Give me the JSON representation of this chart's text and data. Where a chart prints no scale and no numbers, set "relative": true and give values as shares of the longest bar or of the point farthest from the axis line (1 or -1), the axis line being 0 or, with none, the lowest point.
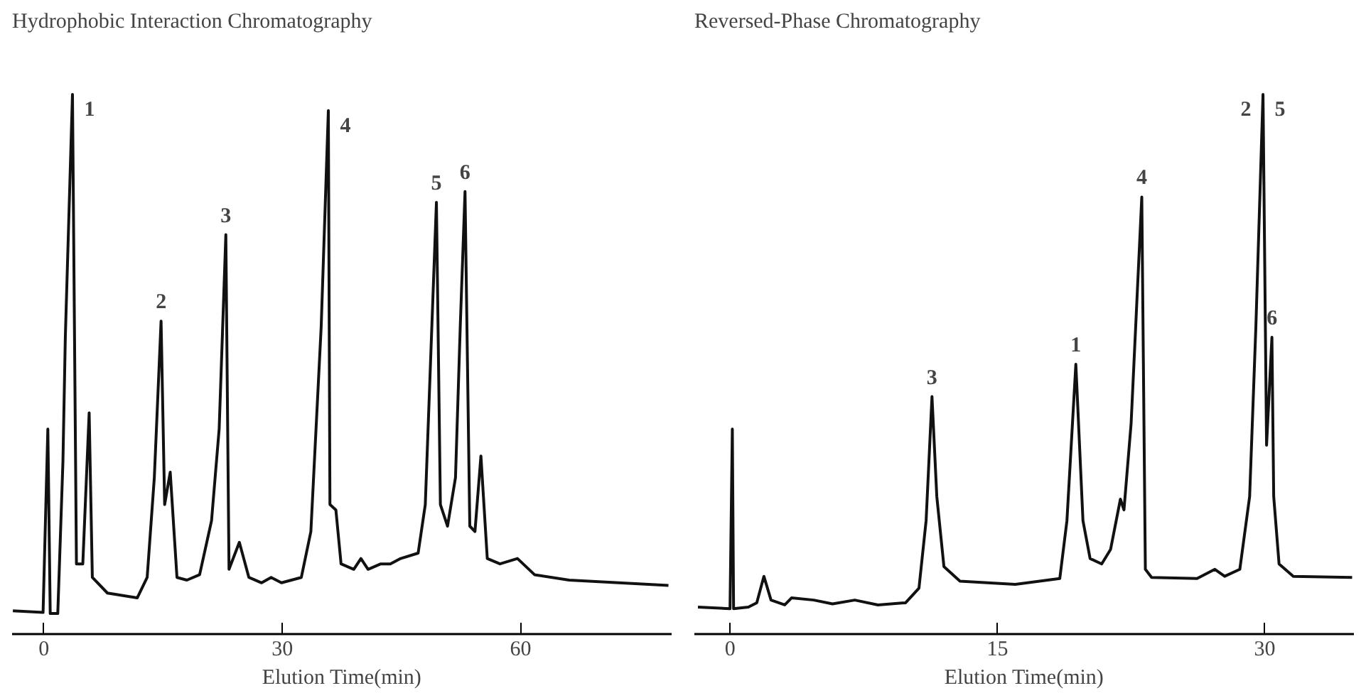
{
  "chart_data": [
    {
      "type": "line",
      "title": "Hydrophobic Interaction Chromatography",
      "xlabel": "Elution Time(min)",
      "relative": true,
      "xlim": [
        -4,
        79
      ],
      "xticks": [
        0,
        30,
        60
      ],
      "grid": false,
      "marker": "none",
      "line_style": "solid",
      "x": [
        -3.9,
        -0.1,
        0.5,
        0.8,
        1.75,
        2.4,
        2.7,
        3.6,
        4.1,
        4.9,
        5.7,
        6.1,
        8.0,
        11.75,
        13.0,
        13.9,
        14.75,
        15.2,
        15.9,
        16.75,
        18,
        19.6,
        21.1,
        22.06,
        22.9,
        23.3,
        24.6,
        25.8,
        27.4,
        28.6,
        29.9,
        32.4,
        33.6,
        34.9,
        35.8,
        36.0,
        36.75,
        37.4,
        39,
        39.9,
        40.8,
        42.4,
        43.6,
        44.9,
        47.1,
        48,
        48.6,
        49.4,
        49.9,
        50.8,
        51.8,
        52.4,
        53.0,
        53.6,
        54.25,
        55.0,
        55.8,
        57.4,
        59.6,
        61.75,
        66.1,
        78.6
      ],
      "series": [
        {
          "color": "#111111",
          "values": [
            0.043,
            0.04,
            0.38,
            0.038,
            0.038,
            0.32,
            0.55,
            1.0,
            0.13,
            0.13,
            0.41,
            0.105,
            0.076,
            0.067,
            0.105,
            0.29,
            0.58,
            0.24,
            0.3,
            0.105,
            0.1,
            0.11,
            0.21,
            0.38,
            0.74,
            0.12,
            0.17,
            0.105,
            0.095,
            0.105,
            0.095,
            0.105,
            0.19,
            0.57,
            0.97,
            0.24,
            0.23,
            0.13,
            0.12,
            0.14,
            0.12,
            0.13,
            0.13,
            0.14,
            0.15,
            0.24,
            0.48,
            0.8,
            0.24,
            0.2,
            0.29,
            0.57,
            0.82,
            0.2,
            0.19,
            0.33,
            0.14,
            0.13,
            0.14,
            0.11,
            0.1,
            0.09
          ]
        }
      ],
      "annotations": [
        {
          "text": "1",
          "x": 3.6,
          "y": 1.0
        },
        {
          "text": "2",
          "x": 14.75,
          "y": 0.58
        },
        {
          "text": "3",
          "x": 22.9,
          "y": 0.74
        },
        {
          "text": "4",
          "x": 35.8,
          "y": 0.97
        },
        {
          "text": "5",
          "x": 49.4,
          "y": 0.8
        },
        {
          "text": "6",
          "x": 53.0,
          "y": 0.82
        }
      ]
    },
    {
      "type": "line",
      "title": "Reversed-Phase Chromatography",
      "xlabel": "Elution Time(min)",
      "relative": true,
      "xlim": [
        -2,
        35
      ],
      "xticks": [
        0,
        15,
        30
      ],
      "grid": false,
      "marker": "none",
      "line_style": "solid",
      "x": [
        -1.8,
        0,
        0.13,
        0.2,
        1.03,
        1.5,
        1.9,
        2.3,
        3.07,
        3.45,
        4.7,
        5.75,
        7.0,
        8.3,
        9.85,
        10.6,
        11.0,
        11.33,
        11.6,
        12.0,
        12.9,
        16.0,
        18.5,
        18.9,
        19.4,
        19.8,
        20.2,
        20.85,
        21.35,
        21.9,
        22.1,
        22.5,
        23.1,
        23.3,
        23.65,
        26.2,
        27.2,
        27.75,
        28.6,
        29.15,
        29.5,
        29.9,
        30.1,
        30.4,
        30.5,
        30.8,
        31.6,
        34.9
      ],
      "series": [
        {
          "color": "#111111",
          "values": [
            0.05,
            0.047,
            0.38,
            0.047,
            0.05,
            0.058,
            0.107,
            0.063,
            0.054,
            0.067,
            0.063,
            0.056,
            0.063,
            0.054,
            0.058,
            0.085,
            0.21,
            0.44,
            0.255,
            0.125,
            0.098,
            0.092,
            0.103,
            0.21,
            0.5,
            0.21,
            0.14,
            0.13,
            0.157,
            0.25,
            0.23,
            0.39,
            0.81,
            0.12,
            0.105,
            0.103,
            0.12,
            0.107,
            0.12,
            0.255,
            0.57,
            1.0,
            0.35,
            0.55,
            0.255,
            0.13,
            0.107,
            0.105
          ]
        }
      ],
      "annotations": [
        {
          "text": "3",
          "x": 11.33,
          "y": 0.44
        },
        {
          "text": "1",
          "x": 19.4,
          "y": 0.5
        },
        {
          "text": "4",
          "x": 23.1,
          "y": 0.81
        },
        {
          "text": "2",
          "x": 29.9,
          "y": 1.0
        },
        {
          "text": "5",
          "x": 29.9,
          "y": 1.0
        },
        {
          "text": "6",
          "x": 30.4,
          "y": 0.55
        }
      ]
    }
  ]
}
